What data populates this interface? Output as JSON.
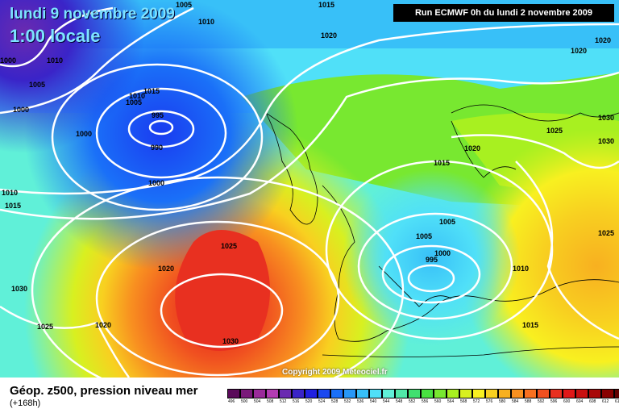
{
  "header": {
    "date": "lundi 9 novembre 2009",
    "time": "1:00 locale",
    "run": "Run ECMWF 0h du lundi 2 novembre 2009"
  },
  "copyright": "Copyright 2009 Meteociel.fr",
  "legend": {
    "title": "Géop. z500, pression niveau mer",
    "subtitle": "(+168h)",
    "scale_values": [
      "496",
      "500",
      "504",
      "508",
      "512",
      "516",
      "520",
      "524",
      "528",
      "532",
      "536",
      "540",
      "544",
      "548",
      "552",
      "556",
      "560",
      "564",
      "568",
      "572",
      "576",
      "580",
      "584",
      "588",
      "592",
      "596",
      "600",
      "604",
      "608",
      "612",
      "616"
    ],
    "scale_colors": [
      "#5a0a5a",
      "#7a1a7a",
      "#9a2a9a",
      "#b23cb2",
      "#6a2ab0",
      "#3a24c8",
      "#2020e0",
      "#1a48f0",
      "#1a70f8",
      "#2898f8",
      "#38c0f8",
      "#50e0f8",
      "#60f0d8",
      "#50e8a8",
      "#40e070",
      "#48e040",
      "#78e830",
      "#a8f020",
      "#d8f020",
      "#f8f020",
      "#f8d020",
      "#f8b020",
      "#f89020",
      "#f87020",
      "#f05020",
      "#e83020",
      "#e01818",
      "#c81010",
      "#a80808",
      "#880000",
      "#600000"
    ]
  },
  "isobars": [
    {
      "label": "1005"
    },
    {
      "label": "1010"
    },
    {
      "label": "1015"
    },
    {
      "label": "1020"
    },
    {
      "label": "1020"
    },
    {
      "label": "1000"
    },
    {
      "label": "1010"
    },
    {
      "label": "1005"
    },
    {
      "label": "1000"
    },
    {
      "label": "1015"
    },
    {
      "label": "1010"
    },
    {
      "label": "1005"
    },
    {
      "label": "995"
    },
    {
      "label": "990"
    },
    {
      "label": "1000"
    },
    {
      "label": "1000"
    },
    {
      "label": "1010"
    },
    {
      "label": "1015"
    },
    {
      "label": "1025"
    },
    {
      "label": "1020"
    },
    {
      "label": "1030"
    },
    {
      "label": "1025"
    },
    {
      "label": "1020"
    },
    {
      "label": "1030"
    },
    {
      "label": "1030"
    },
    {
      "label": "1020"
    },
    {
      "label": "1015"
    },
    {
      "label": "1005"
    },
    {
      "label": "1005"
    },
    {
      "label": "1000"
    },
    {
      "label": "995"
    },
    {
      "label": "1010"
    },
    {
      "label": "1015"
    },
    {
      "label": "1025"
    },
    {
      "label": "1030"
    },
    {
      "label": "1025"
    },
    {
      "label": "1020"
    }
  ],
  "colors": {
    "low": "#1a30e0",
    "high": "#e83020",
    "isobar": "#ffffff"
  }
}
